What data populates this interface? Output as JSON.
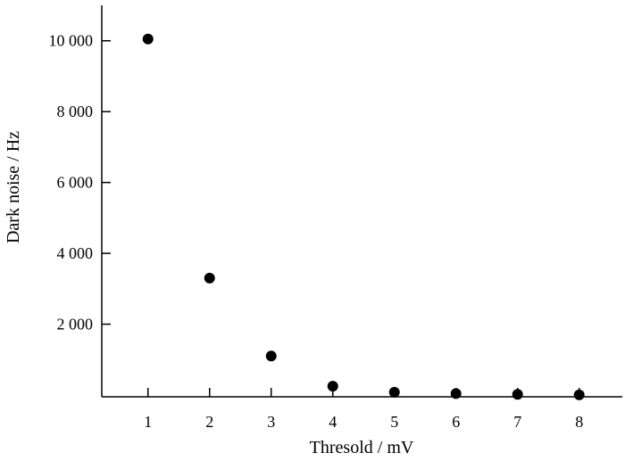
{
  "chart_data": {
    "type": "scatter",
    "title": "",
    "xlabel": "Thresold / mV",
    "ylabel": "Dark noise / Hz",
    "x": [
      1,
      2,
      3,
      4,
      5,
      6,
      7,
      8
    ],
    "y": [
      10050,
      3300,
      1100,
      250,
      80,
      40,
      20,
      5
    ],
    "xlim": [
      0.25,
      8.7
    ],
    "ylim": [
      -50,
      11000
    ],
    "x_ticks": [
      1,
      2,
      3,
      4,
      5,
      6,
      7,
      8
    ],
    "x_tick_labels": [
      "1",
      "2",
      "3",
      "4",
      "5",
      "6",
      "7",
      "8"
    ],
    "y_ticks": [
      2000,
      4000,
      6000,
      8000,
      10000
    ],
    "y_tick_labels": [
      "2 000",
      "4 000",
      "6 000",
      "8 000",
      "10 000"
    ],
    "grid": false,
    "legend": "none",
    "marker_color": "#000000"
  }
}
